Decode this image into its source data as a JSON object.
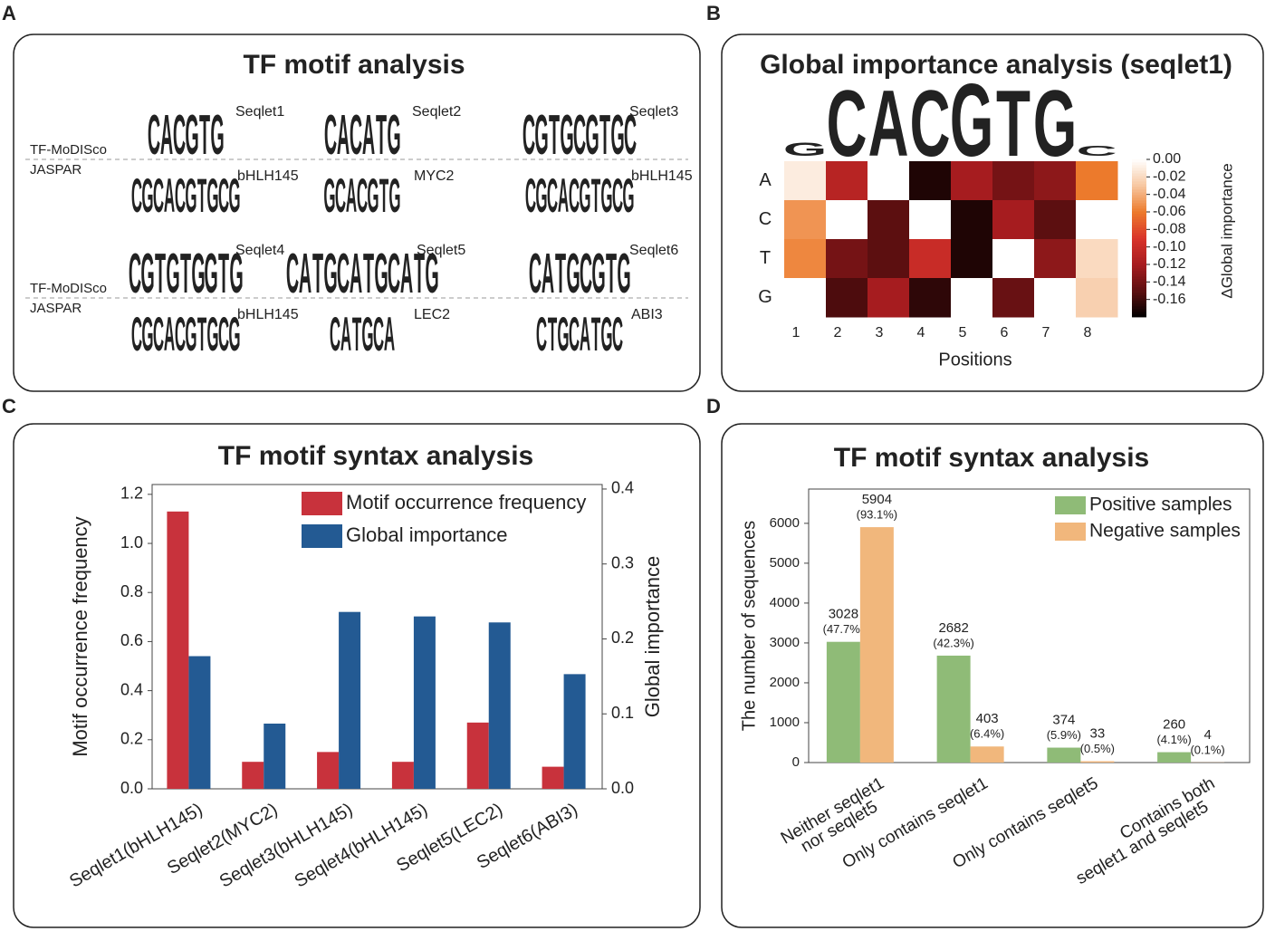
{
  "panel_labels": [
    "A",
    "B",
    "C",
    "D"
  ],
  "motif_panel": {
    "title": "TF motif analysis",
    "letter_colors": {
      "A": "#2a9d3a",
      "C": "#245b9e",
      "G": "#f0ab1e",
      "T": "#d0282e"
    },
    "blocks": [
      {
        "row_labels": [
          "TF-MoDISco",
          "JASPAR"
        ],
        "motifs": [
          {
            "seqlet": "Seqlet1",
            "seqlet_logo": [
              "C",
              "A",
              "C",
              "G",
              "T",
              "G"
            ],
            "jaspar": "bHLH145",
            "jaspar_logo": [
              "C",
              "G",
              "C",
              "A",
              "C",
              "G",
              "T",
              "G",
              "C",
              "G"
            ]
          },
          {
            "seqlet": "Seqlet2",
            "seqlet_logo": [
              "C",
              "A",
              "C",
              "A",
              "T",
              "G"
            ],
            "jaspar": "MYC2",
            "jaspar_logo": [
              "G",
              "C",
              "A",
              "C",
              "G",
              "T",
              "G"
            ]
          },
          {
            "seqlet": "Seqlet3",
            "seqlet_logo": [
              "C",
              "G",
              "T",
              "G",
              "C",
              "G",
              "T",
              "G",
              "C"
            ],
            "jaspar": "bHLH145",
            "jaspar_logo": [
              "C",
              "G",
              "C",
              "A",
              "C",
              "G",
              "T",
              "G",
              "C",
              "G"
            ]
          }
        ]
      },
      {
        "row_labels": [
          "TF-MoDISco",
          "JASPAR"
        ],
        "motifs": [
          {
            "seqlet": "Seqlet4",
            "seqlet_logo": [
              "C",
              "G",
              "T",
              "G",
              "T",
              "G",
              "G",
              "T",
              "G"
            ],
            "jaspar": "bHLH145",
            "jaspar_logo": [
              "C",
              "G",
              "C",
              "A",
              "C",
              "G",
              "T",
              "G",
              "C",
              "G"
            ]
          },
          {
            "seqlet": "Seqlet5",
            "seqlet_logo": [
              "C",
              "A",
              "T",
              "G",
              "C",
              "A",
              "T",
              "G",
              "C",
              "A",
              "T",
              "G"
            ],
            "jaspar": "LEC2",
            "jaspar_logo": [
              "C",
              "A",
              "T",
              "G",
              "C",
              "A"
            ]
          },
          {
            "seqlet": "Seqlet6",
            "seqlet_logo": [
              "C",
              "A",
              "T",
              "G",
              "C",
              "G",
              "T",
              "G"
            ],
            "jaspar": "ABI3",
            "jaspar_logo": [
              "C",
              "T",
              "G",
              "C",
              "A",
              "T",
              "G",
              "C"
            ]
          }
        ]
      }
    ]
  },
  "chart_data": [
    {
      "type": "heatmap",
      "title": "Global importance analysis (seqlet1)",
      "logo": [
        "G",
        "C",
        "A",
        "C",
        "G",
        "T",
        "G",
        "C"
      ],
      "logo_heights": [
        0.2,
        1,
        1,
        1,
        1.1,
        1,
        1,
        0.15
      ],
      "x": [
        1,
        2,
        3,
        4,
        5,
        6,
        7,
        8
      ],
      "categories": [
        "A",
        "C",
        "T",
        "G"
      ],
      "values": [
        [
          -0.01,
          -0.11,
          0,
          -0.17,
          -0.12,
          -0.14,
          -0.13,
          -0.06
        ],
        [
          -0.05,
          0,
          -0.15,
          0,
          -0.17,
          -0.12,
          -0.15,
          0
        ],
        [
          -0.055,
          -0.14,
          -0.15,
          -0.1,
          -0.17,
          0,
          -0.13,
          -0.02
        ],
        [
          0,
          -0.155,
          -0.12,
          -0.165,
          0,
          -0.145,
          0,
          -0.025
        ]
      ],
      "xlabel": "Positions",
      "colorbar_label": "ΔGlobal importance",
      "vlim": [
        -0.18,
        0
      ],
      "colormap": [
        "#000000",
        "#5c0f10",
        "#a61c1f",
        "#d9342b",
        "#ec7a2c",
        "#f7c7a0",
        "#ffffff"
      ],
      "cticks": [
        {
          "value": 0,
          "label": "0.00"
        },
        {
          "value": -0.02,
          "label": "-0.02"
        },
        {
          "value": -0.04,
          "label": "-0.04"
        },
        {
          "value": -0.06,
          "label": "-0.06"
        },
        {
          "value": -0.08,
          "label": "-0.08"
        },
        {
          "value": -0.1,
          "label": "-0.10"
        },
        {
          "value": -0.12,
          "label": "-0.12"
        },
        {
          "value": -0.14,
          "label": "-0.14"
        },
        {
          "value": -0.16,
          "label": "-0.16"
        }
      ]
    },
    {
      "type": "bar",
      "title": "TF motif syntax analysis",
      "categories": [
        "Seqlet1(bHLH145)",
        "Seqlet2(MYC2)",
        "Seqlet3(bHLH145)",
        "Seqlet4(bHLH145)",
        "Seqlet5(LEC2)",
        "Seqlet6(ABI3)"
      ],
      "series": [
        {
          "name": "Motif occurrence frequency",
          "color": "#c8323c",
          "values": [
            1.13,
            0.11,
            0.15,
            0.11,
            0.27,
            0.09
          ]
        },
        {
          "name": "Global importance",
          "color": "#235a93",
          "axis": "y2",
          "values": [
            0.177,
            0.087,
            0.236,
            0.23,
            0.222,
            0.153
          ]
        }
      ],
      "ylabel": "Motif occurrence frequency",
      "y2label": "Global importance",
      "ylim": [
        0,
        1.24
      ],
      "yticks": [
        {
          "value": 0,
          "label": "0.0"
        },
        0.2,
        0.4,
        0.6,
        0.8,
        {
          "value": 1,
          "label": "1.0"
        },
        1.2
      ],
      "y2lim": [
        0,
        0.406
      ],
      "y2ticks": [
        {
          "value": 0,
          "label": "0.0"
        },
        0.1,
        0.2,
        0.3,
        0.4
      ],
      "legend": "top-right"
    },
    {
      "type": "bar",
      "title": "TF motif syntax analysis",
      "categories": [
        [
          "Neither seqlet1",
          "nor seqlet5"
        ],
        [
          "Only contains seqlet1"
        ],
        [
          "Only contains seqlet5"
        ],
        [
          "Contains both",
          "seqlet1 and seqlet5"
        ]
      ],
      "series": [
        {
          "name": "Positive samples",
          "color": "#8fbb77",
          "values": [
            3028,
            2682,
            374,
            260
          ],
          "percent_labels": [
            "(47.7%)",
            "(42.3%)",
            "(5.9%)",
            "(4.1%)"
          ]
        },
        {
          "name": "Negative samples",
          "color": "#f1b77c",
          "values": [
            5904,
            403,
            33,
            4
          ],
          "percent_labels": [
            "(93.1%)",
            "(6.4%)",
            "(0.5%)",
            "(0.1%)"
          ]
        }
      ],
      "ylabel": "The number of sequences",
      "ylim": [
        0,
        6860
      ],
      "yticks": [
        0,
        1000,
        2000,
        3000,
        4000,
        5000,
        6000
      ],
      "legend": "top-right"
    }
  ]
}
